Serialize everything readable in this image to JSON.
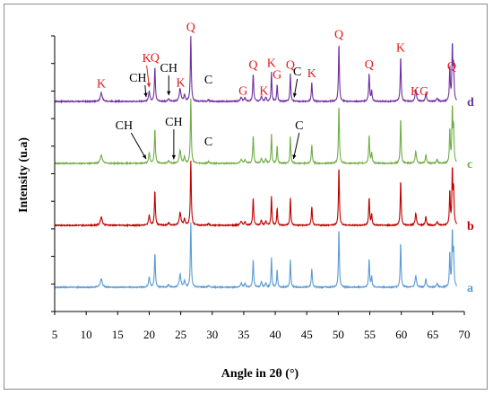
{
  "chart_data": {
    "type": "line",
    "xlabel": "Angle in 2θ (°)",
    "ylabel": "Intensity  (u.a)",
    "xlim": [
      5,
      70
    ],
    "x_ticks": [
      "5",
      "10",
      "15",
      "20",
      "25",
      "30",
      "35",
      "40",
      "45",
      "50",
      "55",
      "60",
      "65",
      "70"
    ],
    "grid": false,
    "legend": "none",
    "series": [
      {
        "name": "a",
        "color": "#5b9bd5",
        "offset": 0
      },
      {
        "name": "b",
        "color": "#c00000",
        "offset": 1
      },
      {
        "name": "c",
        "color": "#70ad47",
        "offset": 2
      },
      {
        "name": "d",
        "color": "#7030a0",
        "offset": 3
      }
    ],
    "peaks": [
      {
        "x": 12.4,
        "h": 0.25,
        "w": 0.35
      },
      {
        "x": 20.0,
        "h": 0.3,
        "w": 0.25
      },
      {
        "x": 20.9,
        "h": 1.0,
        "w": 0.18
      },
      {
        "x": 23.1,
        "h": 0.07,
        "w": 0.3
      },
      {
        "x": 24.9,
        "h": 0.38,
        "w": 0.3
      },
      {
        "x": 25.6,
        "h": 0.18,
        "w": 0.25
      },
      {
        "x": 26.6,
        "h": 1.9,
        "w": 0.17
      },
      {
        "x": 29.4,
        "h": 0.05,
        "w": 0.25
      },
      {
        "x": 34.6,
        "h": 0.12,
        "w": 0.3
      },
      {
        "x": 35.2,
        "h": 0.1,
        "w": 0.25
      },
      {
        "x": 36.5,
        "h": 0.8,
        "w": 0.18
      },
      {
        "x": 37.8,
        "h": 0.15,
        "w": 0.25
      },
      {
        "x": 38.5,
        "h": 0.12,
        "w": 0.25
      },
      {
        "x": 39.4,
        "h": 0.85,
        "w": 0.16
      },
      {
        "x": 40.3,
        "h": 0.5,
        "w": 0.16
      },
      {
        "x": 42.4,
        "h": 0.8,
        "w": 0.16
      },
      {
        "x": 45.8,
        "h": 0.55,
        "w": 0.18
      },
      {
        "x": 50.1,
        "h": 1.7,
        "w": 0.17
      },
      {
        "x": 54.9,
        "h": 0.8,
        "w": 0.18
      },
      {
        "x": 55.3,
        "h": 0.3,
        "w": 0.18
      },
      {
        "x": 59.9,
        "h": 1.3,
        "w": 0.17
      },
      {
        "x": 62.3,
        "h": 0.35,
        "w": 0.25
      },
      {
        "x": 63.9,
        "h": 0.25,
        "w": 0.22
      },
      {
        "x": 65.7,
        "h": 0.1,
        "w": 0.25
      },
      {
        "x": 67.7,
        "h": 1.0,
        "w": 0.16
      },
      {
        "x": 68.1,
        "h": 1.6,
        "w": 0.16
      },
      {
        "x": 68.3,
        "h": 1.0,
        "w": 0.16
      }
    ],
    "annotations": {
      "d": [
        {
          "label": "K",
          "x": 12.4,
          "color": "red"
        },
        {
          "label": "CH",
          "x": 18.2,
          "color": "black",
          "arrow_to": 19.5
        },
        {
          "label": "K",
          "x": 19.6,
          "color": "red",
          "arrow_to": 20.0
        },
        {
          "label": "Q",
          "x": 20.9,
          "color": "red"
        },
        {
          "label": "CH",
          "x": 23.1,
          "color": "black",
          "arrow_to": 23.1
        },
        {
          "label": "K",
          "x": 25.0,
          "color": "red"
        },
        {
          "label": "Q",
          "x": 26.6,
          "color": "red"
        },
        {
          "label": "C",
          "x": 29.4,
          "color": "black"
        },
        {
          "label": "G",
          "x": 34.9,
          "color": "red"
        },
        {
          "label": "Q",
          "x": 36.5,
          "color": "red"
        },
        {
          "label": "K",
          "x": 38.2,
          "color": "red"
        },
        {
          "label": "K",
          "x": 39.4,
          "color": "red"
        },
        {
          "label": "G",
          "x": 40.3,
          "color": "red"
        },
        {
          "label": "Q",
          "x": 42.4,
          "color": "red"
        },
        {
          "label": "C",
          "x": 43.5,
          "color": "black",
          "arrow_to": 43.0
        },
        {
          "label": "K",
          "x": 45.8,
          "color": "red"
        },
        {
          "label": "Q",
          "x": 50.1,
          "color": "red"
        },
        {
          "label": "Q",
          "x": 54.9,
          "color": "red"
        },
        {
          "label": "K",
          "x": 59.9,
          "color": "red"
        },
        {
          "label": "KG",
          "x": 62.9,
          "color": "red"
        },
        {
          "label": "Q",
          "x": 68.0,
          "color": "red"
        }
      ],
      "c": [
        {
          "label": "CH",
          "x": 16.0,
          "color": "black",
          "arrow_to": 19.5
        },
        {
          "label": "CH",
          "x": 23.9,
          "color": "black",
          "arrow_to": 23.9
        },
        {
          "label": "C",
          "x": 29.4,
          "color": "black"
        },
        {
          "label": "C",
          "x": 43.8,
          "color": "black",
          "arrow_to": 42.9
        }
      ]
    }
  }
}
